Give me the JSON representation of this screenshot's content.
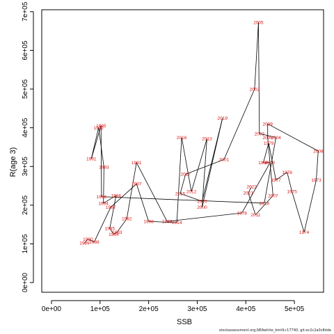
{
  "chart_data": {
    "type": "line",
    "xlabel": "SSB",
    "ylabel": "R(age 3)",
    "xlim": [
      -20000,
      560000
    ],
    "ylim": [
      -25000,
      705000
    ],
    "x_ticks": [
      0,
      100000,
      200000,
      300000,
      400000,
      500000
    ],
    "x_tick_labels": [
      "0e+00",
      "1e+05",
      "2e+05",
      "3e+05",
      "4e+05",
      "5e+05"
    ],
    "y_ticks": [
      0,
      100000,
      200000,
      300000,
      400000,
      500000,
      600000,
      700000
    ],
    "y_tick_labels": [
      "0e+00",
      "1e+05",
      "2e+05",
      "3e+05",
      "4e+05",
      "5e+05",
      "6e+05",
      "7e+05"
    ],
    "grid": false,
    "line_color": "#000000",
    "label_color": "#e01010",
    "points": [
      {
        "year": "1973",
        "x": 545000,
        "y": 265000
      },
      {
        "year": "1974",
        "x": 520000,
        "y": 130000
      },
      {
        "year": "1975",
        "x": 495000,
        "y": 235000
      },
      {
        "year": "1976",
        "x": 485000,
        "y": 285000
      },
      {
        "year": "1977",
        "x": 462000,
        "y": 265000
      },
      {
        "year": "1978",
        "x": 392000,
        "y": 180000
      },
      {
        "year": "1979",
        "x": 447000,
        "y": 360000
      },
      {
        "year": "1980",
        "x": 436000,
        "y": 310000
      },
      {
        "year": "1981",
        "x": 175000,
        "y": 310000
      },
      {
        "year": "1982",
        "x": 155000,
        "y": 165000
      },
      {
        "year": "1983",
        "x": 135000,
        "y": 130000
      },
      {
        "year": "1984",
        "x": 128000,
        "y": 125000
      },
      {
        "year": "1985",
        "x": 120000,
        "y": 140000
      },
      {
        "year": "1986",
        "x": 133000,
        "y": 225000
      },
      {
        "year": "1987",
        "x": 122000,
        "y": 195000
      },
      {
        "year": "1988",
        "x": 88000,
        "y": 105000
      },
      {
        "year": "1989",
        "x": 68000,
        "y": 102000
      },
      {
        "year": "1990",
        "x": 75000,
        "y": 112000
      },
      {
        "year": "1991",
        "x": 82000,
        "y": 320000
      },
      {
        "year": "1992",
        "x": 97000,
        "y": 400000
      },
      {
        "year": "1993",
        "x": 108000,
        "y": 298000
      },
      {
        "year": "1994",
        "x": 107000,
        "y": 205000
      },
      {
        "year": "1995",
        "x": 102000,
        "y": 405000
      },
      {
        "year": "1996",
        "x": 103000,
        "y": 222000
      },
      {
        "year": "1997",
        "x": 175000,
        "y": 255000
      },
      {
        "year": "1998",
        "x": 200000,
        "y": 158000
      },
      {
        "year": "1999",
        "x": 238000,
        "y": 158000
      },
      {
        "year": "2000",
        "x": 310000,
        "y": 195000
      },
      {
        "year": "2001",
        "x": 355000,
        "y": 318000
      },
      {
        "year": "2002",
        "x": 418000,
        "y": 500000
      },
      {
        "year": "2003",
        "x": 428000,
        "y": 385000
      },
      {
        "year": "2004",
        "x": 462000,
        "y": 375000
      },
      {
        "year": "2005",
        "x": 426000,
        "y": 672000
      },
      {
        "year": "2006",
        "x": 445000,
        "y": 375000
      },
      {
        "year": "2007",
        "x": 456000,
        "y": 225000
      },
      {
        "year": "2008",
        "x": 549000,
        "y": 340000
      },
      {
        "year": "2009",
        "x": 445000,
        "y": 410000
      },
      {
        "year": "2010",
        "x": 450000,
        "y": 310000
      },
      {
        "year": "2011",
        "x": 420000,
        "y": 175000
      },
      {
        "year": "2012",
        "x": 288000,
        "y": 235000
      },
      {
        "year": "2013",
        "x": 320000,
        "y": 372000
      },
      {
        "year": "2014",
        "x": 258000,
        "y": 155000
      },
      {
        "year": "2015",
        "x": 265000,
        "y": 230000
      },
      {
        "year": "2016",
        "x": 268000,
        "y": 375000
      },
      {
        "year": "2017",
        "x": 276000,
        "y": 280000
      },
      {
        "year": "2018",
        "x": 438000,
        "y": 205000
      },
      {
        "year": "2019",
        "x": 352000,
        "y": 425000
      },
      {
        "year": "2020",
        "x": 310000,
        "y": 210000
      },
      {
        "year": "2021",
        "x": 405000,
        "y": 232000
      },
      {
        "year": "2022",
        "x": 412000,
        "y": 248000
      }
    ],
    "path_order": [
      "1989",
      "1990",
      "1988",
      "1987",
      "1997",
      "1998",
      "2014",
      "2016",
      "2012",
      "2013",
      "2000",
      "2019",
      "2020",
      "2015",
      "2017",
      "2001",
      "2002",
      "2005",
      "2003",
      "2004",
      "2018",
      "1996",
      "1995",
      "1991",
      "1992",
      "1993",
      "1994",
      "1986",
      "1985",
      "1984",
      "1983",
      "1982",
      "1981",
      "1999",
      "1978",
      "2010",
      "1980",
      "1979",
      "1977",
      "1976",
      "1975",
      "1974",
      "1973",
      "2008",
      "2009",
      "2006",
      "2007",
      "2011",
      "2021",
      "2022"
    ],
    "credit": "stockassessment.org,NEAwhite_bmt9,r17790, git:ec2c2a0c8dde"
  }
}
